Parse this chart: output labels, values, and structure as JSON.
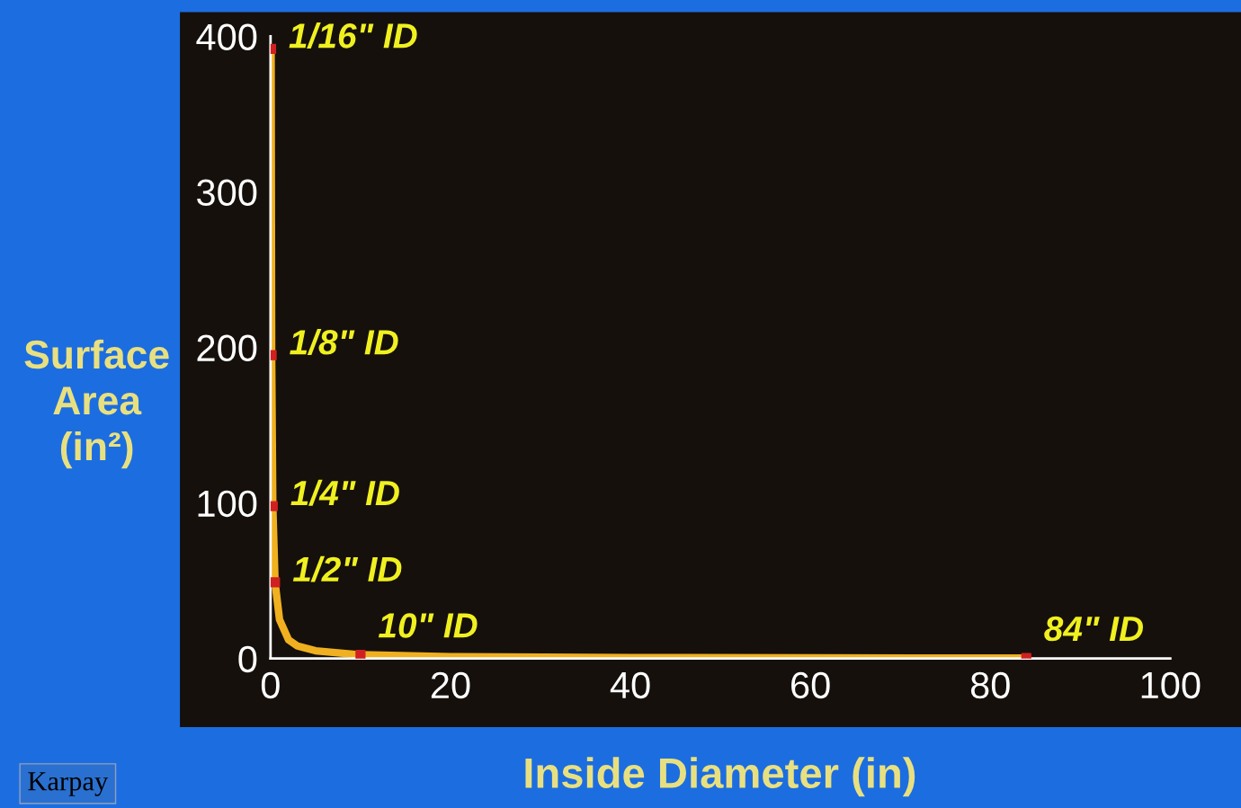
{
  "chart_data": {
    "type": "line",
    "xlabel": "Inside Diameter (in)",
    "ylabel": "Surface\nArea\n(in²)",
    "series": [
      {
        "color": "#f0b020",
        "marker": "none",
        "x": [
          0.0625,
          0.125,
          0.25,
          0.5,
          1,
          2,
          3,
          5,
          10,
          20,
          40,
          60,
          84
        ],
        "values": [
          392,
          195,
          98,
          49,
          25,
          12,
          8,
          5,
          2.4,
          1.2,
          0.6,
          0.4,
          0.3
        ]
      },
      {
        "type": "scatter",
        "color": "#d02020",
        "marker": "square",
        "x": [
          0.0625,
          0.125,
          0.25,
          0.5,
          10,
          84
        ],
        "values": [
          392,
          195,
          98,
          49,
          2.4,
          0.3
        ]
      }
    ],
    "xlim": [
      0,
      100
    ],
    "xticks": [
      0,
      20,
      40,
      60,
      80,
      100
    ],
    "ylim": [
      0,
      400
    ],
    "yticks": [
      0,
      100,
      200,
      300,
      400
    ],
    "grid": false,
    "annotations": [
      {
        "text": "1/16\" ID",
        "x": 0.0625,
        "y": 392
      },
      {
        "text": "1/8\" ID",
        "x": 0.125,
        "y": 195
      },
      {
        "text": "1/4\" ID",
        "x": 0.25,
        "y": 98
      },
      {
        "text": "1/2\" ID",
        "x": 0.5,
        "y": 49
      },
      {
        "text": "10\" ID",
        "x": 10,
        "y": 2.4
      },
      {
        "text": "84\" ID",
        "x": 84,
        "y": 0.3
      },
      "Karpay"
    ]
  }
}
